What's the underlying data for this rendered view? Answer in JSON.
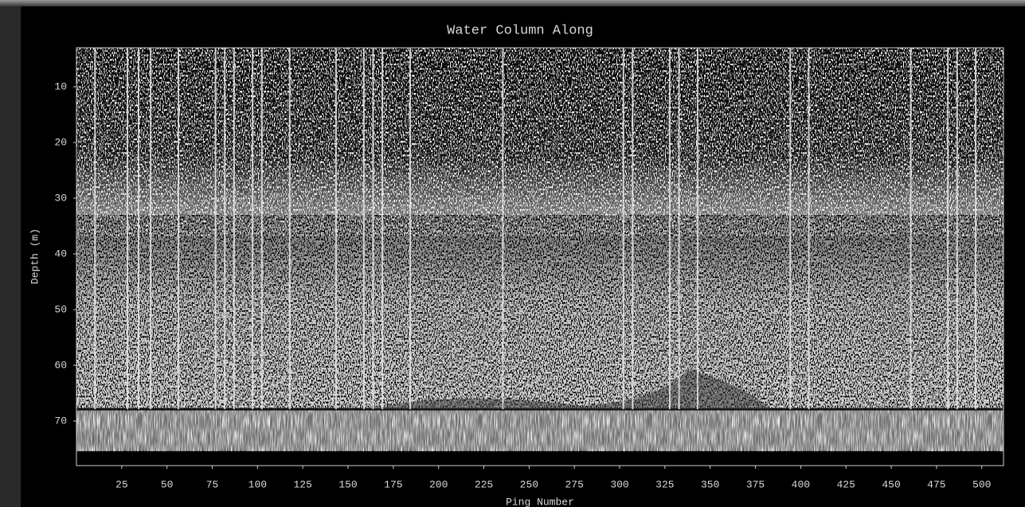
{
  "chart_data": {
    "type": "heatmap",
    "title": "Water Column Along",
    "x_label": "Ping Number",
    "y_label": "Depth (m)",
    "xlim": [
      0,
      512
    ],
    "ylim": [
      3,
      78
    ],
    "y_inverted": true,
    "xticks": [
      25,
      50,
      75,
      100,
      125,
      150,
      175,
      200,
      225,
      250,
      275,
      300,
      325,
      350,
      375,
      400,
      425,
      450,
      475,
      500
    ],
    "yticks": [
      10,
      20,
      30,
      40,
      50,
      60,
      70
    ]
  }
}
